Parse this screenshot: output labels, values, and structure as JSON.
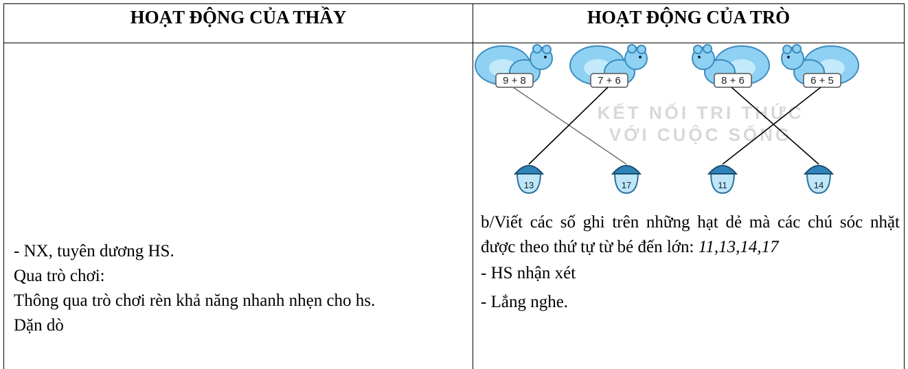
{
  "header": {
    "cols": [
      "HOẠT ĐỘNG CỦA THẦY",
      "HOẠT ĐỘNG CỦA TRÒ"
    ]
  },
  "left": {
    "lines": [
      "- NX, tuyên dương HS.",
      "Qua trò chơi:",
      "Thông qua trò chơi rèn khả năng nhanh nhẹn cho hs.",
      "Dặn dò"
    ]
  },
  "right": {
    "figure": {
      "squirrels": [
        "9 + 8",
        "7 + 6",
        "8 + 6",
        "6 + 5"
      ],
      "acorns": [
        "13",
        "17",
        "11",
        "14"
      ],
      "watermark": [
        "KẾT NỐI TRI THỨC",
        "VỚI CUỘC SỐNG"
      ]
    },
    "text": "b/Viết các số ghi trên những hạt dẻ mà các chú sóc nhặt được theo thứ tự từ bé đến lớn:",
    "answer": "11,13,14,17",
    "lines": [
      "- HS nhận xét",
      "- Lắng nghe."
    ]
  }
}
